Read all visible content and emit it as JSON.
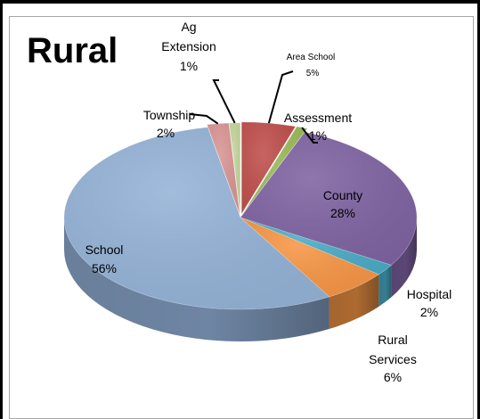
{
  "chart_data": {
    "type": "pie",
    "title": "Rural",
    "style": "3d-exploded-pie",
    "slices": [
      {
        "label": "Area School",
        "value": 5,
        "label_text": "5%",
        "color": "#c0504d",
        "side": "#8c3836"
      },
      {
        "label": "Assessment",
        "value": 1,
        "label_text": "1%",
        "color": "#9bbb59",
        "side": "#71893f"
      },
      {
        "label": "County",
        "value": 28,
        "label_text": "28%",
        "color": "#8064a2",
        "side": "#5b4776"
      },
      {
        "label": "Hospital",
        "value": 2,
        "label_text": "2%",
        "color": "#4bacc6",
        "side": "#357e92"
      },
      {
        "label": "Rural Services",
        "value": 6,
        "label_text": "6%",
        "color": "#f79646",
        "side": "#ad6a31"
      },
      {
        "label": "School",
        "value": 56,
        "label_text": "56%",
        "color": "#95b3d7",
        "side": "#6e85a3"
      },
      {
        "label": "Township",
        "value": 2,
        "label_text": "2%",
        "color": "#d99694",
        "side": "#a06e6c"
      },
      {
        "label": "Ag Extension",
        "value": 1,
        "label_text": "1%",
        "color": "#c3d69b",
        "side": "#909e72"
      }
    ]
  }
}
